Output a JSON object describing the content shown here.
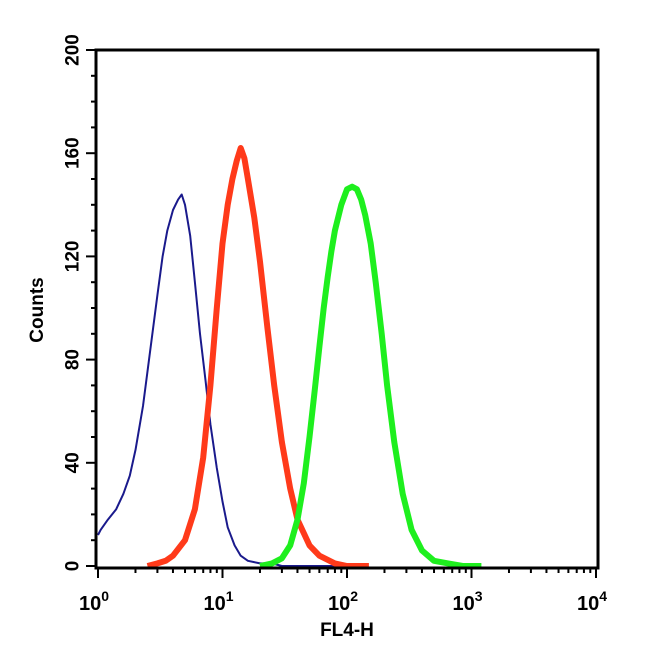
{
  "chart_data": {
    "type": "line",
    "xlabel": "FL4-H",
    "ylabel": "Counts",
    "x_scale": "log",
    "xlim": [
      1,
      10000
    ],
    "ylim": [
      0,
      200
    ],
    "grid": false,
    "x_ticks": [
      {
        "value": 1,
        "base": "10",
        "exp": "0"
      },
      {
        "value": 10,
        "base": "10",
        "exp": "1"
      },
      {
        "value": 100,
        "base": "10",
        "exp": "2"
      },
      {
        "value": 1000,
        "base": "10",
        "exp": "3"
      },
      {
        "value": 10000,
        "base": "10",
        "exp": "4"
      }
    ],
    "y_ticks": [
      "0",
      "40",
      "80",
      "120",
      "160",
      "200"
    ],
    "series": [
      {
        "color": "#1a1a8c",
        "x": [
          1.0,
          1.05,
          1.2,
          1.4,
          1.6,
          1.8,
          2.0,
          2.3,
          2.6,
          3.0,
          3.3,
          3.6,
          4.0,
          4.4,
          4.7,
          5.0,
          5.5,
          6.0,
          6.6,
          7.3,
          8.0,
          9.0,
          10.0,
          11.0,
          12.5,
          14.0,
          16.0,
          20.0,
          25.0,
          30.0,
          40.0,
          60.0,
          100.0
        ],
        "y": [
          12,
          14,
          18,
          22,
          28,
          35,
          45,
          62,
          82,
          105,
          120,
          130,
          138,
          142,
          144,
          140,
          128,
          110,
          90,
          72,
          55,
          38,
          25,
          15,
          8,
          4,
          2,
          1,
          1,
          0,
          0,
          0,
          0
        ]
      },
      {
        "color": "#ff3a1a",
        "x": [
          2.5,
          3.0,
          3.5,
          4.0,
          5.0,
          6.0,
          7.0,
          8.0,
          9.0,
          10.0,
          11.0,
          12.0,
          13.0,
          14.0,
          15.0,
          16.0,
          18.0,
          20.0,
          23.0,
          26.0,
          30.0,
          35.0,
          40.0,
          50.0,
          60.0,
          80.0,
          100.0,
          150.0
        ],
        "y": [
          0,
          1,
          2,
          4,
          10,
          22,
          42,
          70,
          100,
          125,
          140,
          150,
          157,
          162,
          158,
          150,
          135,
          118,
          92,
          70,
          48,
          30,
          18,
          8,
          4,
          1,
          0,
          0
        ]
      },
      {
        "color": "#1eef1e",
        "x": [
          20.0,
          25.0,
          30.0,
          35.0,
          40.0,
          45.0,
          50.0,
          55.0,
          60.0,
          65.0,
          70.0,
          75.0,
          80.0,
          90.0,
          100.0,
          110.0,
          120.0,
          130.0,
          140.0,
          155.0,
          170.0,
          190.0,
          210.0,
          240.0,
          280.0,
          330.0,
          400.0,
          500.0,
          650.0,
          850.0,
          1200.0
        ],
        "y": [
          0,
          1,
          3,
          8,
          18,
          32,
          50,
          68,
          85,
          100,
          112,
          122,
          130,
          140,
          146,
          147,
          146,
          142,
          136,
          125,
          110,
          90,
          70,
          48,
          28,
          14,
          6,
          2,
          1,
          0,
          0
        ]
      }
    ]
  }
}
